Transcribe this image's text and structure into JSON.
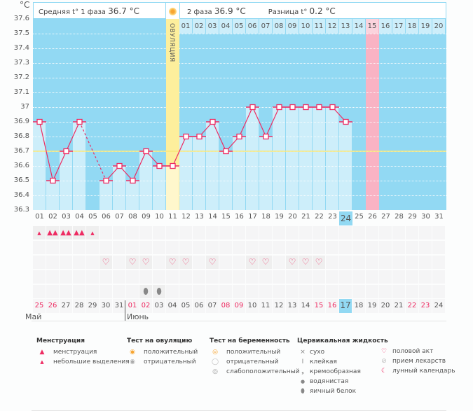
{
  "header": {
    "avg_label": "Средняя t° 1 фаза",
    "avg_value": "36.7 °C",
    "phase2_label": "2 фаза",
    "phase2_value": "36.9 °C",
    "diff_label": "Разница t°",
    "diff_value": "0.2 °C",
    "ovulation_label": "ОВУЛЯЦИЯ",
    "unit": "°C"
  },
  "colors": {
    "background": "#92d9f3",
    "bar": "#cdeefa",
    "ovulation": "#fdef9c",
    "line": "#ee2b62",
    "average_line": "#f8e77a",
    "highlight_day": "#f9b3c4",
    "today": "#92d9f3"
  },
  "chart_data": {
    "type": "line",
    "title": "",
    "ylim": [
      36.3,
      37.6
    ],
    "yticks": [
      "37.6",
      "37.5",
      "37.4",
      "37.3",
      "37.2",
      "37.1",
      "37",
      "36.9",
      "36.8",
      "36.7",
      "36.6",
      "36.5",
      "36.4",
      "36.3"
    ],
    "cycle_days": [
      "01",
      "02",
      "03",
      "04",
      "05",
      "06",
      "07",
      "08",
      "09",
      "10",
      "11",
      "12",
      "13",
      "14",
      "15",
      "16",
      "17",
      "18",
      "19",
      "20",
      "21",
      "22",
      "23",
      "24",
      "25",
      "26",
      "27",
      "28",
      "29",
      "30",
      "31"
    ],
    "temperatures": [
      36.9,
      36.5,
      36.7,
      36.9,
      null,
      36.5,
      36.6,
      36.5,
      36.7,
      36.6,
      36.6,
      36.8,
      36.8,
      36.9,
      36.7,
      36.8,
      37.0,
      36.8,
      37.0,
      37.0,
      37.0,
      37.0,
      37.0,
      36.9
    ],
    "average_first_phase": 36.7,
    "ovulation_day": 11,
    "highlighted_day": 26,
    "current_day": 24,
    "phase2_days": [
      "01",
      "02",
      "03",
      "04",
      "05",
      "06",
      "07",
      "08",
      "09",
      "10",
      "11",
      "12",
      "13",
      "14",
      "15",
      "16",
      "17",
      "18",
      "19",
      "20"
    ]
  },
  "calendar": {
    "dates": [
      "25",
      "26",
      "27",
      "28",
      "29",
      "30",
      "31",
      "01",
      "02",
      "03",
      "04",
      "05",
      "06",
      "07",
      "08",
      "09",
      "10",
      "11",
      "12",
      "13",
      "14",
      "15",
      "16",
      "17",
      "18",
      "19",
      "20",
      "21",
      "22",
      "23",
      "24"
    ],
    "weekend_indices": [
      0,
      1,
      7,
      8,
      14,
      15,
      21,
      22,
      28,
      29
    ],
    "months": [
      "Май",
      "Июнь"
    ]
  },
  "symbols": {
    "menstruation": {
      "1": "small",
      "2": "big",
      "3": "big",
      "4": "big",
      "5": "small"
    },
    "intercourse_days": [
      6,
      8,
      9,
      11,
      12,
      14,
      17,
      18,
      20,
      21,
      22
    ],
    "egg_white_days": [
      9,
      10
    ]
  },
  "legend": {
    "menstruation": {
      "title": "Менструация",
      "items": [
        "менструация",
        "небольшие выделения"
      ]
    },
    "ovulation_test": {
      "title": "Тест на овуляцию",
      "items": [
        "положительный",
        "отрицательный"
      ]
    },
    "pregnancy_test": {
      "title": "Тест на беременность",
      "items": [
        "положительный",
        "отрицательный",
        "слабоположительный"
      ]
    },
    "cervical": {
      "title": "Цервикальная жидкость",
      "items": [
        "сухо",
        "клейкая",
        "кремообразная",
        "водянистая",
        "яичный белок"
      ]
    },
    "other": {
      "items": [
        "половой акт",
        "прием лекарств",
        "лунный календарь"
      ]
    }
  }
}
